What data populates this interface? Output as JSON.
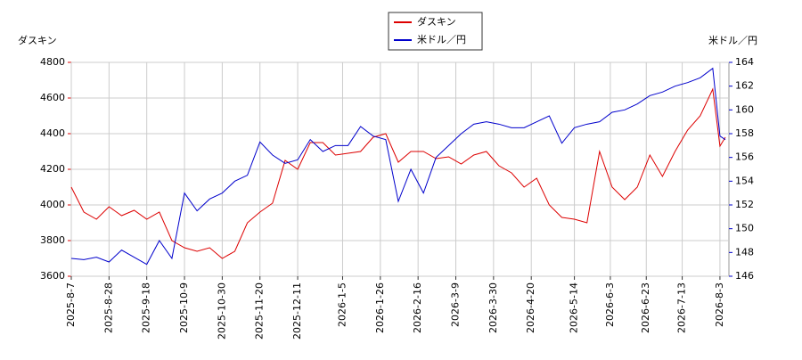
{
  "chart_data": {
    "type": "line",
    "y_label": "ダスキン",
    "y2_label": "米ドル／円",
    "x": [
      "2025-8-7",
      "2025-8-14",
      "2025-8-21",
      "2025-8-28",
      "2025-9-4",
      "2025-9-11",
      "2025-9-18",
      "2025-9-25",
      "2025-10-2",
      "2025-10-9",
      "2025-10-16",
      "2025-10-23",
      "2025-10-30",
      "2025-11-6",
      "2025-11-13",
      "2025-11-20",
      "2025-11-27",
      "2025-12-4",
      "2025-12-11",
      "2025-12-18",
      "2025-12-25",
      "2026-1-1",
      "2026-1-8",
      "2026-1-15",
      "2026-1-22",
      "2026-1-29",
      "2026-2-5",
      "2026-2-12",
      "2026-2-19",
      "2026-2-26",
      "2026-3-5",
      "2026-3-12",
      "2026-3-19",
      "2026-3-26",
      "2026-4-2",
      "2026-4-9",
      "2026-4-16",
      "2026-4-23",
      "2026-4-30",
      "2026-5-7",
      "2026-5-14",
      "2026-5-21",
      "2026-5-28",
      "2026-6-4",
      "2026-6-11",
      "2026-6-18",
      "2026-6-25",
      "2026-7-2",
      "2026-7-9",
      "2026-7-16",
      "2026-7-23",
      "2026-7-30",
      "2026-8-3",
      "2026-8-6"
    ],
    "series": [
      {
        "name": "ダスキン",
        "color": "#dd0000",
        "values": [
          4100,
          3960,
          3920,
          3990,
          3940,
          3970,
          3920,
          3960,
          3800,
          3760,
          3740,
          3760,
          3700,
          3740,
          3900,
          3960,
          4010,
          4250,
          4200,
          4350,
          4350,
          4280,
          4290,
          4300,
          4380,
          4400,
          4240,
          4300,
          4300,
          4260,
          4270,
          4230,
          4280,
          4300,
          4220,
          4180,
          4100,
          4150,
          4000,
          3930,
          3920,
          3900,
          4300,
          4100,
          4030,
          4100,
          4280,
          4160,
          4300,
          4420,
          4500,
          4650,
          4330,
          4380
        ]
      },
      {
        "name": "米ドル／円",
        "color": "#0000cc",
        "axis": "y2",
        "values": [
          147.5,
          147.4,
          147.6,
          147.2,
          148.2,
          147.6,
          147.0,
          149.0,
          147.5,
          153.0,
          151.5,
          152.5,
          153.0,
          154.0,
          154.5,
          157.3,
          156.2,
          155.5,
          155.8,
          157.5,
          156.5,
          157.0,
          157.0,
          158.6,
          157.8,
          157.5,
          152.3,
          155.0,
          153.0,
          156.0,
          157.0,
          158.0,
          158.8,
          159.0,
          158.8,
          158.5,
          158.5,
          159.0,
          159.5,
          157.2,
          158.5,
          158.8,
          159.0,
          159.8,
          160.0,
          160.5,
          161.2,
          161.5,
          162.0,
          162.3,
          162.7,
          163.5,
          157.8,
          157.5
        ]
      }
    ],
    "xlim": [
      "2025-8-7",
      "2026-8-8"
    ],
    "xticks": [
      "2025-8-7",
      "2025-8-28",
      "2025-9-18",
      "2025-10-9",
      "2025-10-30",
      "2025-11-20",
      "2025-12-11",
      "2026-1-5",
      "2026-1-26",
      "2026-2-16",
      "2026-3-9",
      "2026-3-30",
      "2026-4-20",
      "2026-5-14",
      "2026-6-3",
      "2026-6-23",
      "2026-7-13",
      "2026-8-3"
    ],
    "ylim": [
      3600,
      4800
    ],
    "yticks": [
      3600,
      3800,
      4000,
      4200,
      4400,
      4600,
      4800
    ],
    "y2lim": [
      146,
      164
    ],
    "y2ticks": [
      146,
      148,
      150,
      152,
      154,
      156,
      158,
      160,
      162,
      164
    ],
    "grid": true,
    "legend": "top"
  }
}
